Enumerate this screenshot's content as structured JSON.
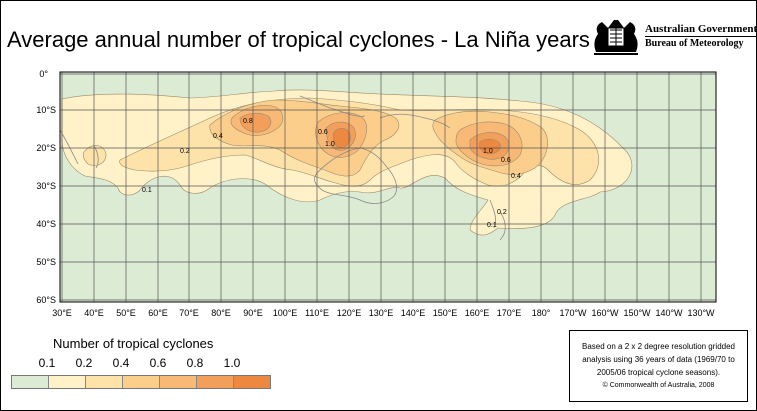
{
  "title": "Average annual number of tropical cyclones - La Niña years",
  "agency": {
    "line1": "Australian Government",
    "line2": "Bureau of Meteorology"
  },
  "map": {
    "latitude_labels": [
      "0°",
      "10°S",
      "20°S",
      "30°S",
      "40°S",
      "50°S",
      "60°S"
    ],
    "longitude_labels": [
      "30°E",
      "40°E",
      "50°E",
      "60°E",
      "70°E",
      "80°E",
      "90°E",
      "100°E",
      "110°E",
      "120°E",
      "130°E",
      "140°E",
      "150°E",
      "160°E",
      "170°E",
      "180°",
      "170°W",
      "160°W",
      "150°W",
      "140°W",
      "130°W"
    ],
    "contour_labels": [
      "0.8",
      "0.6",
      "1.0",
      "0.4",
      "0.2",
      "0.1",
      "1.0",
      "0.6",
      "0.4",
      "0.2",
      "0.1"
    ],
    "colors": {
      "ocean": "#dcebd4",
      "grid": "#555555",
      "coast": "#8a8a8a"
    }
  },
  "legend": {
    "title": "Number of tropical cyclones",
    "labels": [
      "0.1",
      "0.2",
      "0.4",
      "0.6",
      "0.8",
      "1.0"
    ],
    "colors": [
      "#dcebd4",
      "#fff1c8",
      "#fde3aa",
      "#fbcf8b",
      "#f8b876",
      "#f29f5b",
      "#ec8840"
    ]
  },
  "note": {
    "text": "Based on a 2 x 2 degree resolution gridded analysis using 36 years of data (1969/70 to 2005/06 tropical cyclone seasons).",
    "copyright": "© Commonwealth of Australia, 2008"
  }
}
